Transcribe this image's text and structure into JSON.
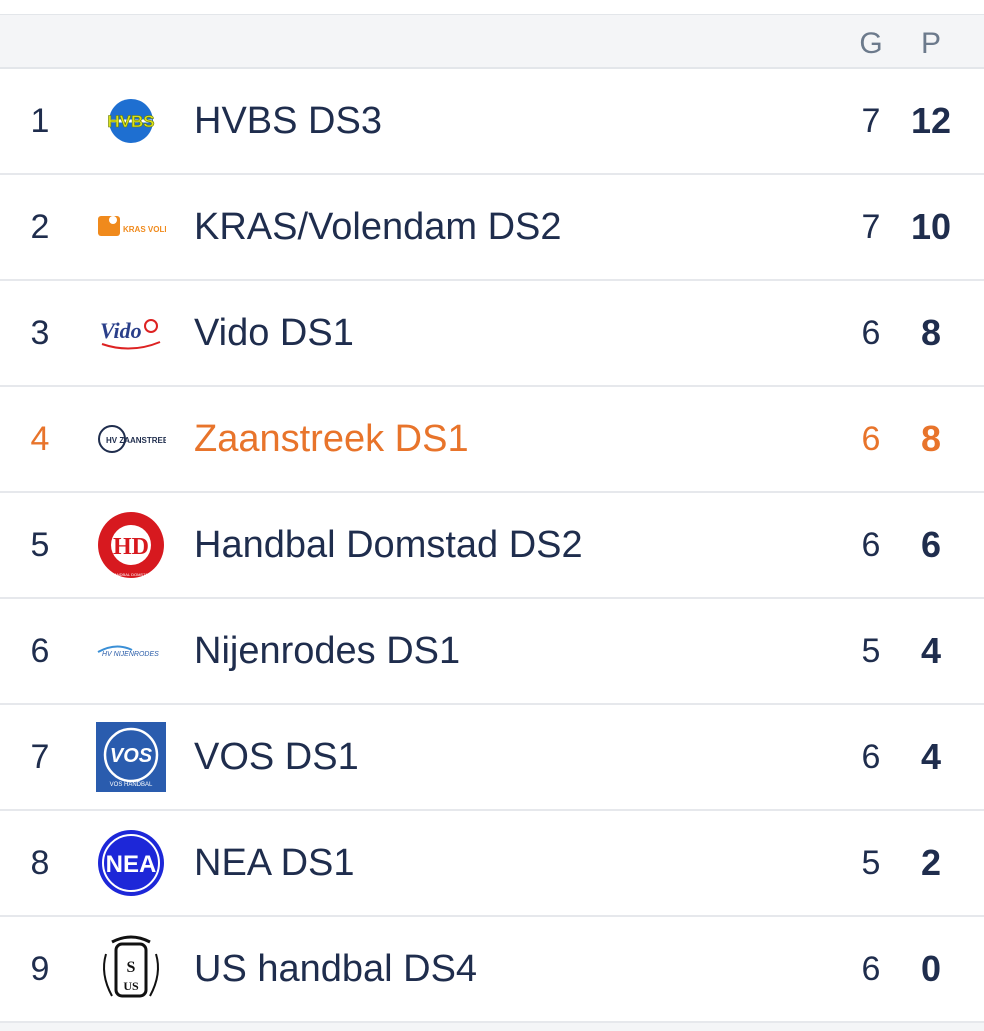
{
  "header": {
    "g_label": "G",
    "p_label": "P"
  },
  "colors": {
    "text": "#1f2d4d",
    "highlight": "#e8742b",
    "header_bg": "#f4f5f7"
  },
  "rows": [
    {
      "pos": "1",
      "team": "HVBS DS3",
      "g": "7",
      "p": "12",
      "logo": "hvbs-logo",
      "logo_text": "HVBS"
    },
    {
      "pos": "2",
      "team": "KRAS/Volendam DS2",
      "g": "7",
      "p": "10",
      "logo": "kras-volendam-logo",
      "logo_text": "KRAS VOLENDAM"
    },
    {
      "pos": "3",
      "team": "Vido DS1",
      "g": "6",
      "p": "8",
      "logo": "vido-logo",
      "logo_text": "Vido"
    },
    {
      "pos": "4",
      "team": "Zaanstreek DS1",
      "g": "6",
      "p": "8",
      "logo": "zaanstreek-logo",
      "logo_text": "HV ZAANSTREEK",
      "highlight": true
    },
    {
      "pos": "5",
      "team": "Handbal Domstad DS2",
      "g": "6",
      "p": "6",
      "logo": "domstad-logo",
      "logo_text": "HANDBAL DOMSTAD"
    },
    {
      "pos": "6",
      "team": "Nijenrodes DS1",
      "g": "5",
      "p": "4",
      "logo": "nijenrodes-logo",
      "logo_text": "HV NIJENRODES"
    },
    {
      "pos": "7",
      "team": "VOS DS1",
      "g": "6",
      "p": "4",
      "logo": "vos-logo",
      "logo_text": "VOS HANDBAL"
    },
    {
      "pos": "8",
      "team": "NEA DS1",
      "g": "5",
      "p": "2",
      "logo": "nea-logo",
      "logo_text": "NEA"
    },
    {
      "pos": "9",
      "team": "US handbal DS4",
      "g": "6",
      "p": "0",
      "logo": "us-logo",
      "logo_text": "US"
    }
  ]
}
